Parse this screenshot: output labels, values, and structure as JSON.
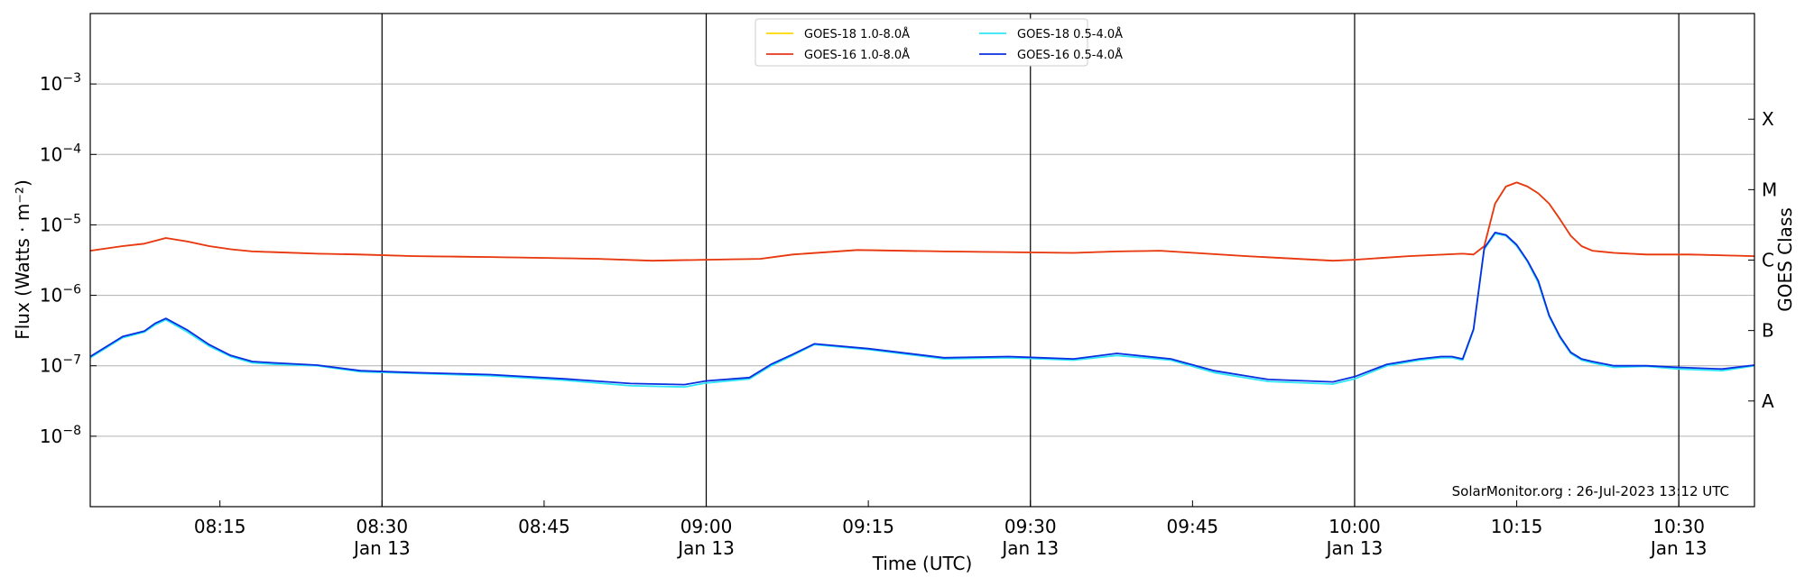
{
  "chart_data": {
    "type": "line",
    "xlabel": "Time (UTC)",
    "ylabel": "Flux (Watts · m⁻²)",
    "ylabel_right": "GOES Class",
    "credit": "SolarMonitor.org : 26-Jul-2023 13:12 UTC",
    "y_scale": "log",
    "ylim": [
      1e-09,
      0.01
    ],
    "xlim": [
      "08:03",
      "10:37"
    ],
    "x_date": "Jan 13",
    "grid": "horizontal",
    "legend_position": "top-center",
    "x_ticks": [
      {
        "time": "08:15",
        "label": "08:15",
        "sublabel": ""
      },
      {
        "time": "08:30",
        "label": "08:30",
        "sublabel": "Jan 13"
      },
      {
        "time": "08:45",
        "label": "08:45",
        "sublabel": ""
      },
      {
        "time": "09:00",
        "label": "09:00",
        "sublabel": "Jan 13"
      },
      {
        "time": "09:15",
        "label": "09:15",
        "sublabel": ""
      },
      {
        "time": "09:30",
        "label": "09:30",
        "sublabel": "Jan 13"
      },
      {
        "time": "09:45",
        "label": "09:45",
        "sublabel": ""
      },
      {
        "time": "10:00",
        "label": "10:00",
        "sublabel": "Jan 13"
      },
      {
        "time": "10:15",
        "label": "10:15",
        "sublabel": ""
      },
      {
        "time": "10:30",
        "label": "10:30",
        "sublabel": "Jan 13"
      }
    ],
    "y_ticks": [
      {
        "value": 1e-08,
        "base": "10",
        "exp": "−8"
      },
      {
        "value": 1e-07,
        "base": "10",
        "exp": "−7"
      },
      {
        "value": 1e-06,
        "base": "10",
        "exp": "−6"
      },
      {
        "value": 1e-05,
        "base": "10",
        "exp": "−5"
      },
      {
        "value": 0.0001,
        "base": "10",
        "exp": "−4"
      },
      {
        "value": 0.001,
        "base": "10",
        "exp": "−3"
      }
    ],
    "goes_classes": [
      {
        "label": "A",
        "value": 3.162e-08
      },
      {
        "label": "B",
        "value": 3.162e-07
      },
      {
        "label": "C",
        "value": 3.162e-06
      },
      {
        "label": "M",
        "value": 3.162e-05
      },
      {
        "label": "X",
        "value": 0.0003162
      }
    ],
    "vertical_lines": [
      "08:30",
      "09:00",
      "09:30",
      "10:00",
      "10:30"
    ],
    "series": [
      {
        "name": "GOES-18 1.0-8.0Å",
        "color": "#FFD700",
        "x": [
          "08:03",
          "08:06",
          "08:08",
          "08:10",
          "08:12",
          "08:14",
          "08:16",
          "08:18",
          "08:20",
          "08:24",
          "08:28",
          "08:33",
          "08:40",
          "08:50",
          "08:55",
          "09:00",
          "09:05",
          "09:08",
          "09:14",
          "09:22",
          "09:34",
          "09:38",
          "09:42",
          "09:50",
          "09:58",
          "10:00",
          "10:05",
          "10:10",
          "10:11",
          "10:12",
          "10:13",
          "10:14",
          "10:15",
          "10:16",
          "10:17",
          "10:18",
          "10:19",
          "10:20",
          "10:21",
          "10:22",
          "10:24",
          "10:27",
          "10:31",
          "10:37"
        ],
        "y": [
          4.3e-06,
          5e-06,
          5.4e-06,
          6.5e-06,
          5.8e-06,
          5e-06,
          4.5e-06,
          4.2e-06,
          4.1e-06,
          3.9e-06,
          3.8e-06,
          3.6e-06,
          3.5e-06,
          3.3e-06,
          3.1e-06,
          3.2e-06,
          3.3e-06,
          3.8e-06,
          4.4e-06,
          4.2e-06,
          4e-06,
          4.2e-06,
          4.3e-06,
          3.6e-06,
          3.1e-06,
          3.2e-06,
          3.6e-06,
          3.9e-06,
          3.8e-06,
          5e-06,
          2e-05,
          3.5e-05,
          4e-05,
          3.5e-05,
          2.8e-05,
          2e-05,
          1.2e-05,
          7e-06,
          5e-06,
          4.3e-06,
          4e-06,
          3.8e-06,
          3.8e-06,
          3.6e-06
        ]
      },
      {
        "name": "GOES-16 1.0-8.0Å",
        "color": "#E8361C",
        "x": [
          "08:03",
          "08:06",
          "08:08",
          "08:10",
          "08:12",
          "08:14",
          "08:16",
          "08:18",
          "08:20",
          "08:24",
          "08:28",
          "08:33",
          "08:40",
          "08:50",
          "08:55",
          "09:00",
          "09:05",
          "09:08",
          "09:14",
          "09:22",
          "09:34",
          "09:38",
          "09:42",
          "09:50",
          "09:58",
          "10:00",
          "10:05",
          "10:10",
          "10:11",
          "10:12",
          "10:13",
          "10:14",
          "10:15",
          "10:16",
          "10:17",
          "10:18",
          "10:19",
          "10:20",
          "10:21",
          "10:22",
          "10:24",
          "10:27",
          "10:31",
          "10:37"
        ],
        "y": [
          4.3e-06,
          5e-06,
          5.4e-06,
          6.5e-06,
          5.8e-06,
          5e-06,
          4.5e-06,
          4.2e-06,
          4.1e-06,
          3.9e-06,
          3.8e-06,
          3.6e-06,
          3.5e-06,
          3.3e-06,
          3.1e-06,
          3.2e-06,
          3.3e-06,
          3.8e-06,
          4.4e-06,
          4.2e-06,
          4e-06,
          4.2e-06,
          4.3e-06,
          3.6e-06,
          3.1e-06,
          3.2e-06,
          3.6e-06,
          3.9e-06,
          3.8e-06,
          5e-06,
          2e-05,
          3.5e-05,
          4e-05,
          3.5e-05,
          2.8e-05,
          2e-05,
          1.2e-05,
          7e-06,
          5e-06,
          4.3e-06,
          4e-06,
          3.8e-06,
          3.8e-06,
          3.6e-06
        ]
      },
      {
        "name": "GOES-18 0.5-4.0Å",
        "color": "#2EE6F5",
        "x": [
          "08:03",
          "08:06",
          "08:08",
          "08:09",
          "08:10",
          "08:12",
          "08:14",
          "08:16",
          "08:18",
          "08:20",
          "08:24",
          "08:28",
          "08:33",
          "08:40",
          "08:47",
          "08:53",
          "08:58",
          "09:00",
          "09:04",
          "09:06",
          "09:08",
          "09:10",
          "09:15",
          "09:22",
          "09:28",
          "09:34",
          "09:38",
          "09:43",
          "09:47",
          "09:52",
          "09:58",
          "10:00",
          "10:03",
          "10:06",
          "10:08",
          "10:09",
          "10:10",
          "10:11",
          "10:12",
          "10:13",
          "10:14",
          "10:15",
          "10:16",
          "10:17",
          "10:18",
          "10:19",
          "10:20",
          "10:21",
          "10:22",
          "10:24",
          "10:27",
          "10:30",
          "10:34",
          "10:37"
        ],
        "y": [
          1.3e-07,
          2.5e-07,
          3e-07,
          3.8e-07,
          4.5e-07,
          3e-07,
          1.9e-07,
          1.35e-07,
          1.1e-07,
          1.05e-07,
          1e-07,
          8.2e-08,
          7.8e-08,
          7.2e-08,
          6.2e-08,
          5.2e-08,
          5e-08,
          5.7e-08,
          6.5e-08,
          1e-07,
          1.4e-07,
          2e-07,
          1.7e-07,
          1.25e-07,
          1.3e-07,
          1.2e-07,
          1.4e-07,
          1.2e-07,
          8e-08,
          6e-08,
          5.5e-08,
          6.5e-08,
          1e-07,
          1.2e-07,
          1.3e-07,
          1.3e-07,
          1.2e-07,
          3.2e-07,
          4.5e-06,
          7.5e-06,
          7e-06,
          5e-06,
          3e-06,
          1.5e-06,
          5e-07,
          2.5e-07,
          1.5e-07,
          1.2e-07,
          1.1e-07,
          9.5e-08,
          9.8e-08,
          9e-08,
          8.5e-08,
          1e-07
        ]
      },
      {
        "name": "GOES-16 0.5-4.0Å",
        "color": "#0A2EE0",
        "x": [
          "08:03",
          "08:06",
          "08:08",
          "08:09",
          "08:10",
          "08:12",
          "08:14",
          "08:16",
          "08:18",
          "08:20",
          "08:24",
          "08:28",
          "08:33",
          "08:40",
          "08:47",
          "08:53",
          "08:58",
          "09:00",
          "09:04",
          "09:06",
          "09:08",
          "09:10",
          "09:15",
          "09:22",
          "09:28",
          "09:34",
          "09:38",
          "09:43",
          "09:47",
          "09:52",
          "09:58",
          "10:00",
          "10:03",
          "10:06",
          "10:08",
          "10:09",
          "10:10",
          "10:11",
          "10:12",
          "10:13",
          "10:14",
          "10:15",
          "10:16",
          "10:17",
          "10:18",
          "10:19",
          "10:20",
          "10:21",
          "10:22",
          "10:24",
          "10:27",
          "10:30",
          "10:34",
          "10:37"
        ],
        "y": [
          1.35e-07,
          2.6e-07,
          3.1e-07,
          4e-07,
          4.7e-07,
          3.2e-07,
          2e-07,
          1.4e-07,
          1.15e-07,
          1.1e-07,
          1.02e-07,
          8.5e-08,
          8e-08,
          7.5e-08,
          6.5e-08,
          5.6e-08,
          5.4e-08,
          6.1e-08,
          6.8e-08,
          1.05e-07,
          1.45e-07,
          2.05e-07,
          1.75e-07,
          1.3e-07,
          1.35e-07,
          1.25e-07,
          1.5e-07,
          1.25e-07,
          8.5e-08,
          6.4e-08,
          5.9e-08,
          7e-08,
          1.05e-07,
          1.25e-07,
          1.35e-07,
          1.35e-07,
          1.25e-07,
          3.3e-07,
          4.7e-06,
          7.8e-06,
          7.2e-06,
          5.2e-06,
          3.1e-06,
          1.6e-06,
          5.2e-07,
          2.6e-07,
          1.55e-07,
          1.25e-07,
          1.15e-07,
          1e-07,
          1e-07,
          9.5e-08,
          9e-08,
          1.02e-07
        ]
      }
    ]
  }
}
